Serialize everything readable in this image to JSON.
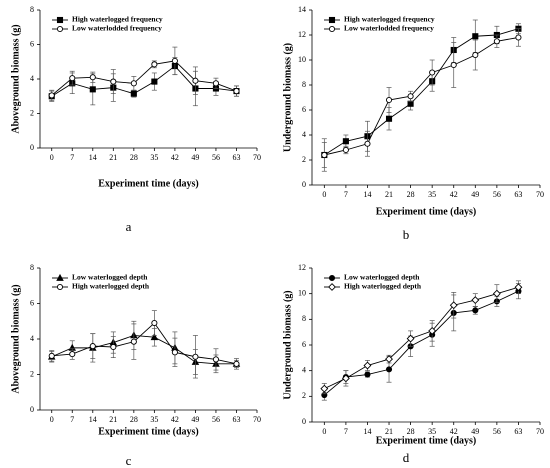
{
  "chart_data": [
    {
      "type": "line",
      "panel": "a",
      "xlabel": "Experiment time (days)",
      "ylabel": "Aboveground biomass (g)",
      "xlim": [
        -4,
        70
      ],
      "xticks": [
        0,
        7,
        14,
        21,
        28,
        35,
        42,
        49,
        56,
        63,
        70
      ],
      "ylim": [
        0,
        8
      ],
      "yticks": [
        0,
        2,
        4,
        6,
        8
      ],
      "x": [
        0,
        7,
        14,
        21,
        28,
        35,
        42,
        49,
        56,
        63
      ],
      "legend": "upper left",
      "series": [
        {
          "name": "High waterlogged frequency",
          "color": "#000000",
          "marker": "square",
          "filled": true,
          "values": [
            3.0,
            3.75,
            3.4,
            3.5,
            3.15,
            3.85,
            4.75,
            3.45,
            3.45,
            3.3
          ],
          "errors": [
            0.3,
            0.6,
            0.9,
            0.8,
            0.2,
            0.5,
            0.5,
            1.0,
            0.4,
            0.3
          ]
        },
        {
          "name": "Low waterlodded frequency",
          "color": "#000000",
          "marker": "circle",
          "filled": false,
          "values": [
            3.05,
            4.05,
            4.1,
            3.85,
            3.75,
            4.85,
            5.05,
            3.9,
            3.75,
            3.3
          ],
          "errors": [
            0.3,
            0.4,
            0.3,
            0.7,
            0.4,
            0.2,
            0.8,
            0.8,
            0.3,
            0.3
          ]
        }
      ]
    },
    {
      "type": "line",
      "panel": "b",
      "xlabel": "Experiment time (days)",
      "ylabel": "Underground biomass (g)",
      "xlim": [
        -4,
        70
      ],
      "xticks": [
        0,
        7,
        14,
        21,
        28,
        35,
        42,
        49,
        56,
        63,
        70
      ],
      "ylim": [
        0,
        14
      ],
      "yticks": [
        0,
        2,
        4,
        6,
        8,
        10,
        12,
        14
      ],
      "x": [
        0,
        7,
        14,
        21,
        28,
        35,
        42,
        49,
        56,
        63
      ],
      "legend": "upper left",
      "series": [
        {
          "name": "High waterlogged frequency",
          "color": "#000000",
          "marker": "square",
          "filled": true,
          "values": [
            2.4,
            3.5,
            3.9,
            5.3,
            6.5,
            8.3,
            10.8,
            11.9,
            12.0,
            12.5
          ],
          "errors": [
            1.3,
            0.5,
            1.2,
            0.9,
            0.5,
            0.8,
            1.0,
            1.3,
            0.7,
            0.4
          ]
        },
        {
          "name": "Low waterlodded frequency",
          "color": "#000000",
          "marker": "circle",
          "filled": false,
          "values": [
            2.4,
            2.8,
            3.3,
            6.8,
            7.1,
            9.0,
            9.6,
            10.4,
            11.5,
            11.8
          ],
          "errors": [
            1.0,
            0.3,
            1.0,
            1.0,
            0.4,
            1.0,
            1.8,
            1.2,
            0.5,
            0.7
          ]
        }
      ]
    },
    {
      "type": "line",
      "panel": "c",
      "xlabel": "Experiment time (days)",
      "ylabel": "Aboveground biomass (g)",
      "xlim": [
        -4,
        70
      ],
      "xticks": [
        0,
        7,
        14,
        21,
        28,
        35,
        42,
        49,
        56,
        63,
        70
      ],
      "ylim": [
        0,
        8
      ],
      "yticks": [
        0,
        2,
        4,
        6,
        8
      ],
      "x": [
        0,
        7,
        14,
        21,
        28,
        35,
        42,
        49,
        56,
        63
      ],
      "legend": "upper left",
      "series": [
        {
          "name": "Low waterlogged depth",
          "color": "#000000",
          "marker": "triangle",
          "filled": true,
          "values": [
            3.0,
            3.5,
            3.5,
            3.8,
            4.2,
            4.1,
            3.5,
            2.7,
            2.6,
            2.6
          ],
          "errors": [
            0.3,
            0.4,
            0.8,
            0.6,
            0.8,
            0.5,
            0.9,
            0.7,
            0.5,
            0.2
          ]
        },
        {
          "name": "High waterlogged depth",
          "color": "#000000",
          "marker": "circle",
          "filled": false,
          "values": [
            3.05,
            3.15,
            3.6,
            3.55,
            3.85,
            4.9,
            3.25,
            3.0,
            2.85,
            2.6
          ],
          "errors": [
            0.3,
            0.3,
            0.7,
            0.6,
            1.0,
            0.7,
            0.8,
            1.2,
            0.6,
            0.3
          ]
        }
      ]
    },
    {
      "type": "line",
      "panel": "d",
      "xlabel": "Experiment time (days)",
      "ylabel": "Underground biomass (g)",
      "xlim": [
        -4,
        70
      ],
      "xticks": [
        0,
        7,
        14,
        21,
        28,
        35,
        42,
        49,
        56,
        63,
        70
      ],
      "ylim": [
        0,
        12
      ],
      "yticks": [
        0,
        2,
        4,
        6,
        8,
        10,
        12
      ],
      "x": [
        0,
        7,
        14,
        21,
        28,
        35,
        42,
        49,
        56,
        63
      ],
      "legend": "upper left",
      "series": [
        {
          "name": "Low waterlogged depth",
          "color": "#000000",
          "marker": "circle",
          "filled": true,
          "values": [
            2.1,
            3.5,
            3.7,
            4.1,
            5.9,
            6.8,
            8.5,
            8.7,
            9.4,
            10.2
          ],
          "errors": [
            0.4,
            0.5,
            0.2,
            1.0,
            0.8,
            0.9,
            1.4,
            0.3,
            0.4,
            0.6
          ]
        },
        {
          "name": "High waterlogged depth",
          "color": "#000000",
          "marker": "diamond",
          "filled": false,
          "values": [
            2.6,
            3.4,
            4.4,
            4.9,
            6.5,
            7.1,
            9.1,
            9.5,
            10.0,
            10.5
          ],
          "errors": [
            0.4,
            0.6,
            0.4,
            0.3,
            0.6,
            0.8,
            1.0,
            0.5,
            0.7,
            0.5
          ]
        }
      ]
    }
  ]
}
